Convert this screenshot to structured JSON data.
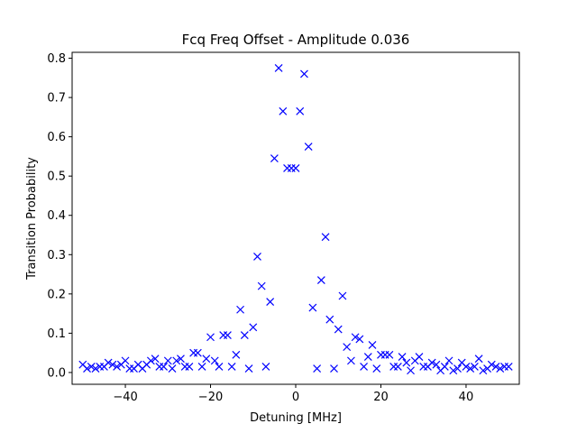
{
  "chart_data": {
    "type": "scatter",
    "title": "Fcq Freq Offset - Amplitude 0.036",
    "xlabel": "Detuning [MHz]",
    "ylabel": "Transition Probability",
    "xlim": [
      -52.5,
      52.5
    ],
    "ylim": [
      -0.03,
      0.815
    ],
    "xticks": [
      -40,
      -20,
      0,
      20,
      40
    ],
    "xtick_labels": [
      "−40",
      "−20",
      "0",
      "20",
      "40"
    ],
    "yticks": [
      0.0,
      0.1,
      0.2,
      0.3,
      0.4,
      0.5,
      0.6,
      0.7,
      0.8
    ],
    "ytick_labels": [
      "0.0",
      "0.1",
      "0.2",
      "0.3",
      "0.4",
      "0.5",
      "0.6",
      "0.7",
      "0.8"
    ],
    "marker": "x",
    "color": "#0000ff",
    "grid": false,
    "x": [
      -50.0,
      -49.0,
      -48.0,
      -47.0,
      -46.0,
      -45.0,
      -44.0,
      -43.0,
      -42.0,
      -41.0,
      -40.0,
      -39.0,
      -38.0,
      -37.0,
      -36.0,
      -35.0,
      -34.0,
      -33.0,
      -32.0,
      -31.0,
      -30.0,
      -29.0,
      -28.0,
      -27.0,
      -26.0,
      -25.0,
      -24.0,
      -23.0,
      -22.0,
      -21.0,
      -20.0,
      -19.0,
      -18.0,
      -17.0,
      -16.0,
      -15.0,
      -14.0,
      -13.0,
      -12.0,
      -11.0,
      -10.0,
      -9.0,
      -8.0,
      -7.0,
      -6.0,
      -5.0,
      -4.0,
      -3.0,
      -2.0,
      -1.0,
      0.0,
      1.0,
      2.0,
      3.0,
      4.0,
      5.0,
      6.0,
      7.0,
      8.0,
      9.0,
      10.0,
      11.0,
      12.0,
      13.0,
      14.0,
      15.0,
      16.0,
      17.0,
      18.0,
      19.0,
      20.0,
      21.0,
      22.0,
      23.0,
      24.0,
      25.0,
      26.0,
      27.0,
      28.0,
      29.0,
      30.0,
      31.0,
      32.0,
      33.0,
      34.0,
      35.0,
      36.0,
      37.0,
      38.0,
      39.0,
      40.0,
      41.0,
      42.0,
      43.0,
      44.0,
      45.0,
      46.0,
      47.0,
      48.0,
      49.0,
      50.0
    ],
    "y": [
      0.02,
      0.01,
      0.015,
      0.01,
      0.015,
      0.015,
      0.025,
      0.02,
      0.015,
      0.02,
      0.03,
      0.01,
      0.01,
      0.02,
      0.01,
      0.02,
      0.03,
      0.035,
      0.015,
      0.015,
      0.03,
      0.01,
      0.03,
      0.035,
      0.015,
      0.015,
      0.05,
      0.05,
      0.015,
      0.035,
      0.09,
      0.03,
      0.015,
      0.095,
      0.095,
      0.015,
      0.045,
      0.16,
      0.095,
      0.01,
      0.115,
      0.295,
      0.22,
      0.015,
      0.18,
      0.545,
      0.775,
      0.665,
      0.52,
      0.52,
      0.52,
      0.665,
      0.76,
      0.575,
      0.165,
      0.01,
      0.235,
      0.345,
      0.135,
      0.01,
      0.11,
      0.195,
      0.065,
      0.03,
      0.09,
      0.085,
      0.015,
      0.04,
      0.07,
      0.01,
      0.045,
      0.045,
      0.045,
      0.015,
      0.015,
      0.04,
      0.025,
      0.005,
      0.03,
      0.04,
      0.015,
      0.015,
      0.025,
      0.02,
      0.005,
      0.015,
      0.03,
      0.005,
      0.01,
      0.025,
      0.015,
      0.01,
      0.015,
      0.035,
      0.005,
      0.01,
      0.02,
      0.015,
      0.01,
      0.015,
      0.015
    ]
  }
}
